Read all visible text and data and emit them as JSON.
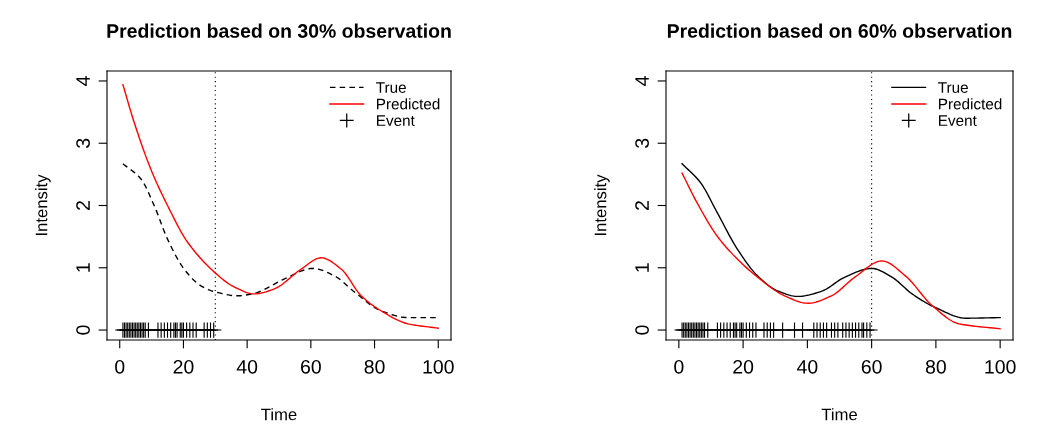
{
  "chart_data": [
    {
      "type": "line",
      "title": "Prediction based on 30% observation",
      "xlabel": "Time",
      "ylabel": "Intensity",
      "xlim": [
        -4,
        104
      ],
      "ylim": [
        -0.16,
        4.16
      ],
      "xticks": [
        0,
        20,
        40,
        60,
        80,
        100
      ],
      "yticks": [
        0,
        1,
        2,
        3,
        4
      ],
      "grid": false,
      "legend": "top right",
      "ref_lines": [
        {
          "axis": "x",
          "value": 30,
          "color": "#000000",
          "line_style": "dotted"
        }
      ],
      "series": [
        {
          "name": "True",
          "color": "#000000",
          "line_style": "dashed",
          "x": [
            1,
            6.6,
            10.8,
            15,
            20.2,
            25.5,
            30.2,
            37,
            42.3,
            51.7,
            60.6,
            67.4,
            73.7,
            82,
            90.5,
            100
          ],
          "values": [
            2.67,
            2.43,
            2.0,
            1.46,
            0.98,
            0.71,
            0.61,
            0.55,
            0.59,
            0.82,
            0.99,
            0.87,
            0.61,
            0.31,
            0.2,
            0.2
          ]
        },
        {
          "name": "Predicted",
          "color": "#ff0000",
          "line_style": "solid",
          "x": [
            1,
            4.5,
            9.7,
            15,
            21.3,
            29.7,
            36,
            42.2,
            48.5,
            57,
            63.2,
            69.5,
            75.8,
            82,
            90.5,
            100
          ],
          "values": [
            3.94,
            3.34,
            2.59,
            2.0,
            1.41,
            0.93,
            0.69,
            0.58,
            0.66,
            0.98,
            1.16,
            0.98,
            0.55,
            0.31,
            0.1,
            0.03
          ]
        },
        {
          "name": "Event",
          "type": "line",
          "line_style": "solid",
          "color": "#000000",
          "marker": "cross",
          "x": [
            1,
            1.5,
            2,
            2.5,
            3,
            3.5,
            4,
            4.5,
            5,
            5.5,
            6,
            6.5,
            7,
            7.5,
            8,
            9,
            12,
            13,
            14,
            15,
            16,
            17,
            17.5,
            18,
            19,
            19.5,
            20,
            21,
            22,
            23,
            24,
            26.5,
            27.5,
            28.5,
            29.5
          ],
          "values": [
            0,
            0,
            0,
            0,
            0,
            0,
            0,
            0,
            0,
            0,
            0,
            0,
            0,
            0,
            0,
            0,
            0,
            0,
            0,
            0,
            0,
            0,
            0,
            0,
            0,
            0,
            0,
            0,
            0,
            0,
            0,
            0,
            0,
            0,
            0
          ]
        }
      ]
    },
    {
      "type": "line",
      "title": "Prediction based on 60% observation",
      "xlabel": "Time",
      "ylabel": "Intensity",
      "xlim": [
        -4,
        104
      ],
      "ylim": [
        -0.16,
        4.16
      ],
      "xticks": [
        0,
        20,
        40,
        60,
        80,
        100
      ],
      "yticks": [
        0,
        1,
        2,
        3,
        4
      ],
      "grid": false,
      "legend": "top right",
      "ref_lines": [
        {
          "axis": "x",
          "value": 60,
          "color": "#000000",
          "line_style": "dotted"
        }
      ],
      "series": [
        {
          "name": "True",
          "color": "#000000",
          "line_style": "solid",
          "x": [
            1,
            6.7,
            11.9,
            18.2,
            24.5,
            30.7,
            37,
            44.3,
            51.7,
            60,
            66.3,
            72.6,
            79.9,
            89.3,
            100
          ],
          "values": [
            2.67,
            2.37,
            1.89,
            1.3,
            0.87,
            0.63,
            0.54,
            0.62,
            0.85,
            0.99,
            0.85,
            0.58,
            0.36,
            0.19,
            0.2
          ]
        },
        {
          "name": "Predicted",
          "color": "#ff0000",
          "line_style": "solid",
          "x": [
            1,
            5.6,
            11.9,
            18.2,
            24.5,
            32.9,
            40.2,
            47.5,
            54.8,
            63.2,
            70.5,
            78.9,
            87.2,
            100
          ],
          "values": [
            2.52,
            2.05,
            1.51,
            1.14,
            0.85,
            0.55,
            0.43,
            0.55,
            0.85,
            1.11,
            0.87,
            0.39,
            0.1,
            0.02
          ]
        },
        {
          "name": "Event",
          "type": "line",
          "line_style": "solid",
          "color": "#000000",
          "marker": "cross",
          "x": [
            1,
            1.5,
            2,
            2.5,
            3,
            3.5,
            4,
            4.5,
            5,
            5.5,
            6,
            6.5,
            7,
            7.5,
            8,
            9,
            12,
            13,
            14,
            15,
            16,
            17,
            17.5,
            18,
            19,
            19.5,
            20,
            21,
            22,
            23,
            24,
            26.5,
            27.5,
            28.5,
            29.5,
            32.3,
            36,
            38.5,
            42,
            43,
            44,
            45,
            46,
            47.5,
            48.5,
            49.5,
            51,
            52,
            53,
            54,
            55,
            56,
            57,
            57.5,
            58.5,
            59.5
          ],
          "values": [
            0,
            0,
            0,
            0,
            0,
            0,
            0,
            0,
            0,
            0,
            0,
            0,
            0,
            0,
            0,
            0,
            0,
            0,
            0,
            0,
            0,
            0,
            0,
            0,
            0,
            0,
            0,
            0,
            0,
            0,
            0,
            0,
            0,
            0,
            0,
            0,
            0,
            0,
            0,
            0,
            0,
            0,
            0,
            0,
            0,
            0,
            0,
            0,
            0,
            0,
            0,
            0,
            0,
            0,
            0,
            0
          ]
        }
      ]
    }
  ]
}
